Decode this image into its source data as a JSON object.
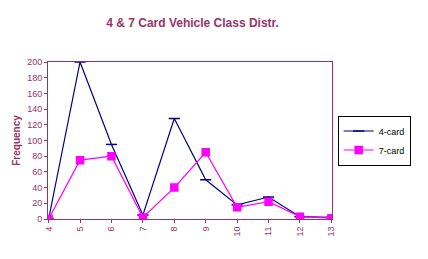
{
  "chart_data": {
    "type": "line",
    "title": "4 & 7 Card Vehicle Class Distr.",
    "y_label": "Frequency",
    "categories": [
      "4",
      "5",
      "6",
      "7",
      "8",
      "9",
      "10",
      "11",
      "12",
      "13"
    ],
    "series": [
      {
        "name": "4-card",
        "color": "#000080",
        "marker": "cross",
        "line_style": "solid",
        "values": [
          0,
          200,
          95,
          5,
          128,
          50,
          18,
          28,
          3,
          2
        ]
      },
      {
        "name": "7-card",
        "color": "#ff00ff",
        "marker": "square",
        "line_style": "solid",
        "values": [
          0,
          75,
          80,
          2,
          40,
          85,
          15,
          22,
          3,
          1
        ]
      }
    ],
    "ylim": [
      0,
      200
    ],
    "yticks": [
      0,
      20,
      40,
      60,
      80,
      100,
      120,
      140,
      160,
      180,
      200
    ],
    "grid": false,
    "legend": "right"
  }
}
